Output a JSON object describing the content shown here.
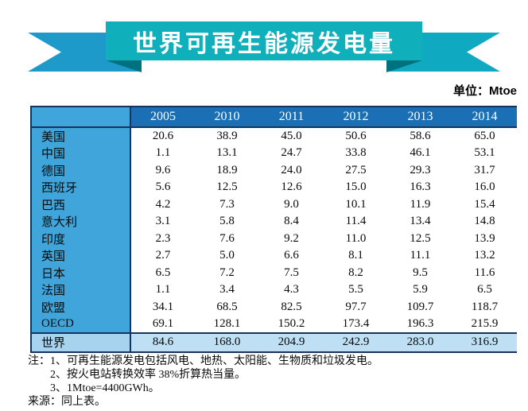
{
  "banner": {
    "title": "世界可再生能源发电量"
  },
  "unit_label": "单位：Mtoe",
  "chart_data": {
    "type": "table",
    "title": "世界可再生能源发电量",
    "unit": "Mtoe",
    "columns": [
      "2005",
      "2010",
      "2011",
      "2012",
      "2013",
      "2014"
    ],
    "rows": [
      {
        "label": "美国",
        "values": [
          20.6,
          38.9,
          45.0,
          50.6,
          58.6,
          65.0
        ]
      },
      {
        "label": "中国",
        "values": [
          1.1,
          13.1,
          24.7,
          33.8,
          46.1,
          53.1
        ]
      },
      {
        "label": "德国",
        "values": [
          9.6,
          18.9,
          24.0,
          27.5,
          29.3,
          31.7
        ]
      },
      {
        "label": "西班牙",
        "values": [
          5.6,
          12.5,
          12.6,
          15.0,
          16.3,
          16.0
        ]
      },
      {
        "label": "巴西",
        "values": [
          4.2,
          7.3,
          9.0,
          10.1,
          11.9,
          15.4
        ]
      },
      {
        "label": "意大利",
        "values": [
          3.1,
          5.8,
          8.4,
          11.4,
          13.4,
          14.8
        ]
      },
      {
        "label": "印度",
        "values": [
          2.3,
          7.6,
          9.2,
          11.0,
          12.5,
          13.9
        ]
      },
      {
        "label": "英国",
        "values": [
          2.7,
          5.0,
          6.6,
          8.1,
          11.1,
          13.2
        ]
      },
      {
        "label": "日本",
        "values": [
          6.5,
          7.2,
          7.5,
          8.2,
          9.5,
          11.6
        ]
      },
      {
        "label": "法国",
        "values": [
          1.1,
          3.4,
          4.3,
          5.5,
          5.9,
          6.5
        ]
      },
      {
        "label": "欧盟",
        "values": [
          34.1,
          68.5,
          82.5,
          97.7,
          109.7,
          118.7
        ]
      },
      {
        "label": "OECD",
        "values": [
          69.1,
          128.1,
          150.2,
          173.4,
          196.3,
          215.9
        ]
      }
    ],
    "total_row": {
      "label": "世界",
      "values": [
        84.6,
        168.0,
        204.9,
        242.9,
        283.0,
        316.9
      ]
    }
  },
  "notes": {
    "prefix": "注：",
    "items": [
      "1、可再生能源发电包括风电、地热、太阳能、生物质和垃圾发电。",
      "2、按火电站转换效率 38%折算热当量。",
      "3、1Mtoe=4400GWh。"
    ],
    "source": "来源：同上表。"
  },
  "colors": {
    "ribbon_teal": "#0fb0bc",
    "ribbon_tail_left": "#1d9aca",
    "ribbon_tail_right": "#10a9c2",
    "ribbon_fold": "#00727f",
    "header_blue": "#1b6fb5",
    "label_column_blue": "#3fa5db",
    "total_row_blue": "#bfdff4",
    "border_navy": "#16335e",
    "title_text": "#ffffff"
  }
}
